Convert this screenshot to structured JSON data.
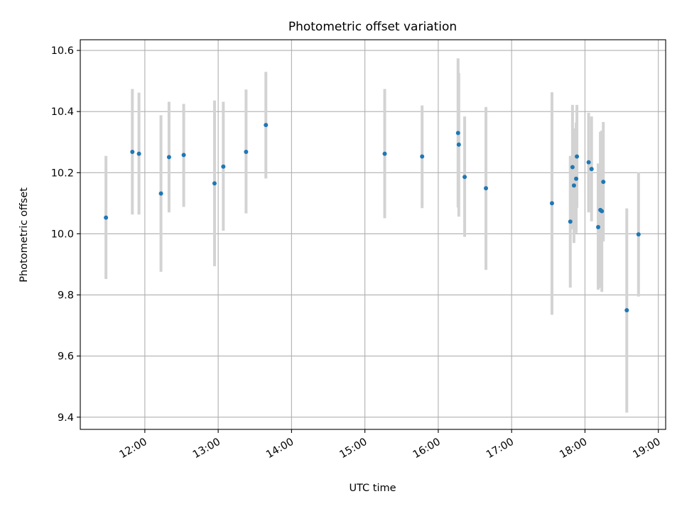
{
  "chart_data": {
    "type": "scatter",
    "title": "Photometric offset variation",
    "xlabel": "UTC time",
    "ylabel": "Photometric offset",
    "x_unit": "hours UTC",
    "xlim": [
      11.12,
      19.1
    ],
    "ylim": [
      9.36,
      10.635
    ],
    "x_ticks": [
      {
        "value": 12,
        "label": "12:00"
      },
      {
        "value": 13,
        "label": "13:00"
      },
      {
        "value": 14,
        "label": "14:00"
      },
      {
        "value": 15,
        "label": "15:00"
      },
      {
        "value": 16,
        "label": "16:00"
      },
      {
        "value": 17,
        "label": "17:00"
      },
      {
        "value": 18,
        "label": "18:00"
      },
      {
        "value": 19,
        "label": "19:00"
      }
    ],
    "y_ticks": [
      {
        "value": 9.4,
        "label": "9.4"
      },
      {
        "value": 9.6,
        "label": "9.6"
      },
      {
        "value": 9.8,
        "label": "9.8"
      },
      {
        "value": 10.0,
        "label": "10.0"
      },
      {
        "value": 10.2,
        "label": "10.2"
      },
      {
        "value": 10.4,
        "label": "10.4"
      },
      {
        "value": 10.6,
        "label": "10.6"
      }
    ],
    "grid": true,
    "legend": "none",
    "point_color": "#1f77b4",
    "errorbar_color": "#d3d3d3",
    "points": [
      {
        "x": 11.47,
        "y": 10.053,
        "low": 9.852,
        "high": 10.255
      },
      {
        "x": 11.83,
        "y": 10.268,
        "low": 10.063,
        "high": 10.474
      },
      {
        "x": 11.92,
        "y": 10.262,
        "low": 10.063,
        "high": 10.462
      },
      {
        "x": 12.22,
        "y": 10.132,
        "low": 9.876,
        "high": 10.388
      },
      {
        "x": 12.33,
        "y": 10.251,
        "low": 10.07,
        "high": 10.432
      },
      {
        "x": 12.53,
        "y": 10.258,
        "low": 10.088,
        "high": 10.425
      },
      {
        "x": 12.95,
        "y": 10.165,
        "low": 9.894,
        "high": 10.436
      },
      {
        "x": 13.07,
        "y": 10.22,
        "low": 10.01,
        "high": 10.432
      },
      {
        "x": 13.38,
        "y": 10.268,
        "low": 10.067,
        "high": 10.472
      },
      {
        "x": 13.65,
        "y": 10.356,
        "low": 10.181,
        "high": 10.53
      },
      {
        "x": 15.27,
        "y": 10.262,
        "low": 10.051,
        "high": 10.474
      },
      {
        "x": 15.78,
        "y": 10.253,
        "low": 10.084,
        "high": 10.42
      },
      {
        "x": 16.27,
        "y": 10.33,
        "low": 10.086,
        "high": 10.574
      },
      {
        "x": 16.28,
        "y": 10.292,
        "low": 10.056,
        "high": 10.526
      },
      {
        "x": 16.36,
        "y": 10.186,
        "low": 9.99,
        "high": 10.384
      },
      {
        "x": 16.65,
        "y": 10.149,
        "low": 9.882,
        "high": 10.415
      },
      {
        "x": 17.55,
        "y": 10.1,
        "low": 9.735,
        "high": 10.463
      },
      {
        "x": 17.8,
        "y": 10.04,
        "low": 9.824,
        "high": 10.255
      },
      {
        "x": 17.83,
        "y": 10.218,
        "low": 10.015,
        "high": 10.422
      },
      {
        "x": 17.85,
        "y": 10.158,
        "low": 9.97,
        "high": 10.345
      },
      {
        "x": 17.88,
        "y": 10.18,
        "low": 10.002,
        "high": 10.364
      },
      {
        "x": 17.89,
        "y": 10.253,
        "low": 10.085,
        "high": 10.422
      },
      {
        "x": 18.05,
        "y": 10.234,
        "low": 10.07,
        "high": 10.396
      },
      {
        "x": 18.09,
        "y": 10.212,
        "low": 10.041,
        "high": 10.384
      },
      {
        "x": 18.18,
        "y": 10.022,
        "low": 9.817,
        "high": 10.23
      },
      {
        "x": 18.21,
        "y": 10.078,
        "low": 9.823,
        "high": 10.334
      },
      {
        "x": 18.23,
        "y": 10.074,
        "low": 9.81,
        "high": 10.338
      },
      {
        "x": 18.25,
        "y": 10.17,
        "low": 9.975,
        "high": 10.366
      },
      {
        "x": 18.57,
        "y": 9.75,
        "low": 9.415,
        "high": 10.083
      },
      {
        "x": 18.73,
        "y": 9.998,
        "low": 9.795,
        "high": 10.202
      }
    ]
  }
}
